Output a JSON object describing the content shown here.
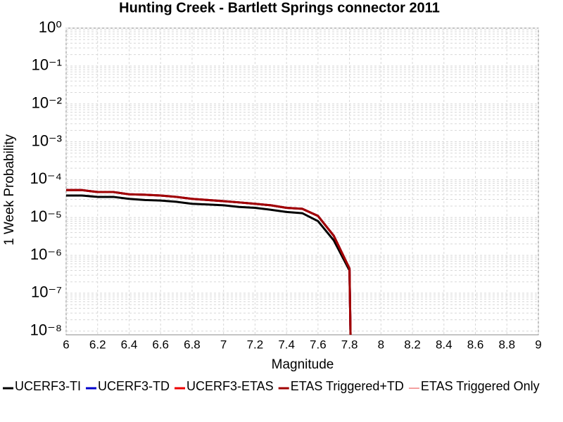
{
  "chart_data": {
    "type": "line",
    "title": "Hunting Creek - Bartlett Springs connector 2011",
    "xlabel": "Magnitude",
    "ylabel": "1 Week Probability",
    "log_y": true,
    "grid": true,
    "legend": "bottom",
    "xlim": [
      6,
      9
    ],
    "xticks": [
      6,
      6.2,
      6.4,
      6.6,
      6.8,
      7,
      7.2,
      7.4,
      7.6,
      7.8,
      8,
      8.2,
      8.4,
      8.6,
      8.8,
      9
    ],
    "ylim": [
      8e-09,
      1
    ],
    "yticks": [
      {
        "value": 1,
        "label": "10⁰"
      },
      {
        "value": 0.1,
        "label": "10⁻¹"
      },
      {
        "value": 0.01,
        "label": "10⁻²"
      },
      {
        "value": 0.001,
        "label": "10⁻³"
      },
      {
        "value": 0.0001,
        "label": "10⁻⁴"
      },
      {
        "value": 1e-05,
        "label": "10⁻⁵"
      },
      {
        "value": 1e-06,
        "label": "10⁻⁶"
      },
      {
        "value": 1e-07,
        "label": "10⁻⁷"
      },
      {
        "value": 1e-08,
        "label": "10⁻⁸"
      }
    ],
    "x": [
      6.0,
      6.1,
      6.2,
      6.3,
      6.4,
      6.5,
      6.6,
      6.7,
      6.8,
      6.9,
      7.0,
      7.1,
      7.2,
      7.3,
      7.4,
      7.5,
      7.6,
      7.7,
      7.8,
      7.81
    ],
    "series": [
      {
        "name": "UCERF3-TI",
        "color": "#000000",
        "width": 3,
        "values": [
          3.8e-05,
          3.8e-05,
          3.5e-05,
          3.5e-05,
          3.1e-05,
          2.9e-05,
          2.8e-05,
          2.6e-05,
          2.3e-05,
          2.2e-05,
          2.1e-05,
          1.9e-05,
          1.8e-05,
          1.6e-05,
          1.4e-05,
          1.3e-05,
          8e-06,
          2.5e-06,
          4e-07,
          1e-09
        ]
      },
      {
        "name": "UCERF3-TD",
        "color": "#0000cc",
        "width": 3,
        "values": [
          5.3e-05,
          5.3e-05,
          4.7e-05,
          4.7e-05,
          4.1e-05,
          4e-05,
          3.8e-05,
          3.5e-05,
          3.1e-05,
          2.9e-05,
          2.7e-05,
          2.5e-05,
          2.3e-05,
          2.1e-05,
          1.8e-05,
          1.7e-05,
          1.1e-05,
          3.3e-06,
          4.5e-07,
          1e-09
        ]
      },
      {
        "name": "UCERF3-ETAS",
        "color": "#ee0000",
        "width": 3,
        "values": [
          5.3e-05,
          5.3e-05,
          4.7e-05,
          4.7e-05,
          4.1e-05,
          4e-05,
          3.8e-05,
          3.5e-05,
          3.1e-05,
          2.9e-05,
          2.7e-05,
          2.5e-05,
          2.3e-05,
          2.1e-05,
          1.8e-05,
          1.7e-05,
          1.1e-05,
          3.3e-06,
          4.5e-07,
          1e-09
        ]
      },
      {
        "name": "ETAS Triggered+TD",
        "color": "#a00000",
        "width": 3,
        "values": [
          5.3e-05,
          5.3e-05,
          4.7e-05,
          4.7e-05,
          4.1e-05,
          4e-05,
          3.8e-05,
          3.5e-05,
          3.1e-05,
          2.9e-05,
          2.7e-05,
          2.5e-05,
          2.3e-05,
          2.1e-05,
          1.8e-05,
          1.7e-05,
          1.1e-05,
          3.3e-06,
          4.5e-07,
          1e-09
        ]
      },
      {
        "name": "ETAS Triggered Only",
        "color": "#f08080",
        "width": 1.5,
        "values": [
          null,
          null,
          null,
          null,
          null,
          null,
          null,
          null,
          null,
          null,
          null,
          null,
          null,
          null,
          null,
          null,
          null,
          null,
          null,
          null
        ]
      }
    ]
  }
}
